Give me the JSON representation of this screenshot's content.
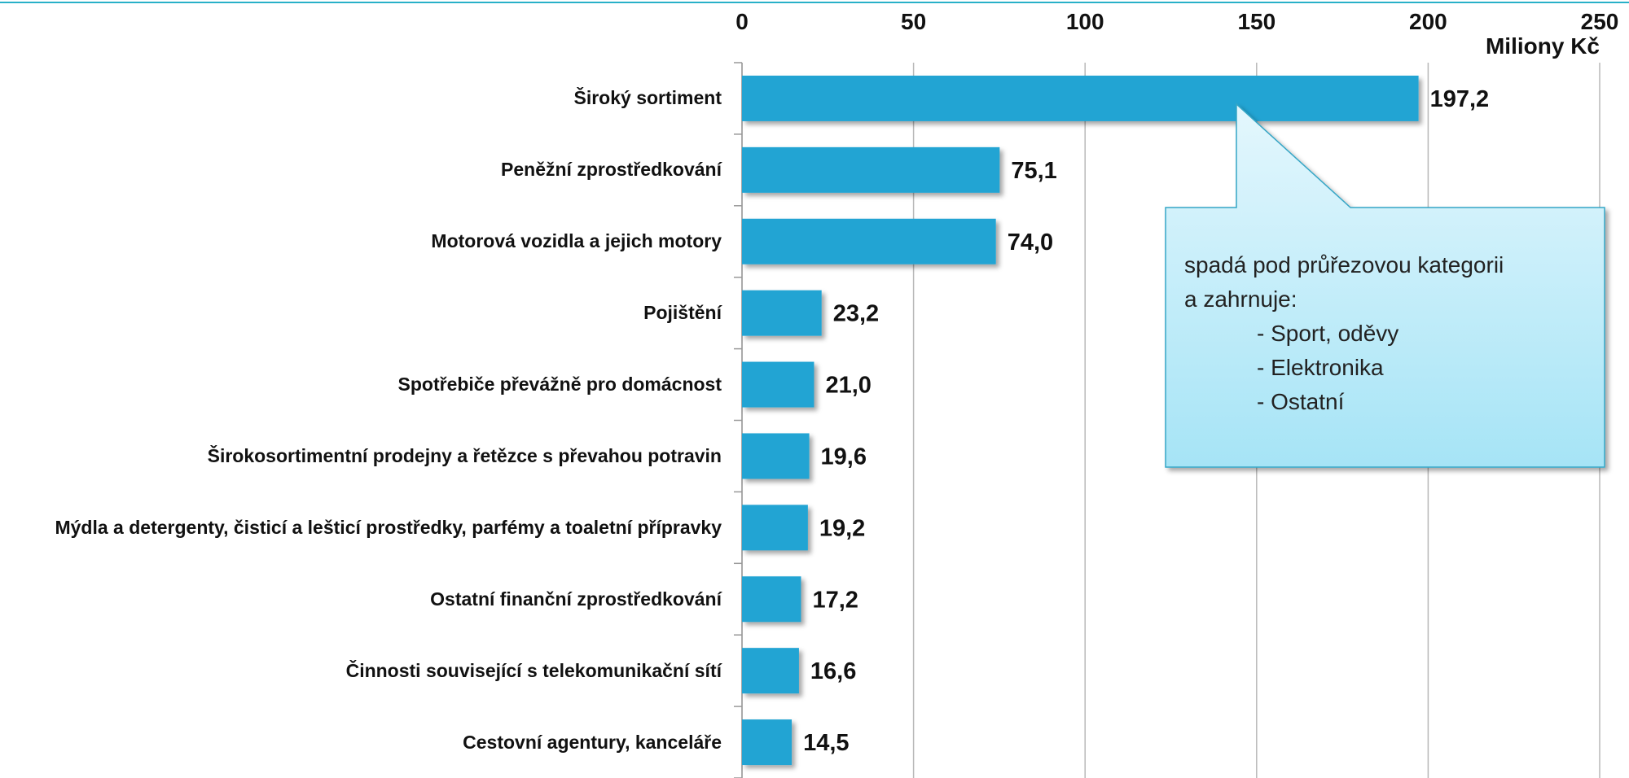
{
  "chart_data": {
    "type": "bar",
    "orientation": "horizontal",
    "x_axis_label": "Miliony Kč",
    "categories": [
      "Široký sortiment",
      "Peněžní zprostředkování",
      "Motorová vozidla a jejich motory",
      "Pojištění",
      "Spotřebiče převážně pro domácnost",
      "Širokosortimentní prodejny a řetězce s převahou potravin",
      "Mýdla a detergenty, čisticí a lešticí prostředky, parfémy a toaletní přípravky",
      "Ostatní finanční zprostředkování",
      "Činnosti související s telekomunikační sítí",
      "Cestovní agentury, kanceláře"
    ],
    "values": [
      197.2,
      75.1,
      74.0,
      23.2,
      21.0,
      19.6,
      19.2,
      17.2,
      16.6,
      14.5
    ],
    "value_labels": [
      "197,2",
      "75,1",
      "74,0",
      "23,2",
      "21,0",
      "19,6",
      "19,2",
      "17,2",
      "16,6",
      "14,5"
    ],
    "color": "#22a4d3",
    "xlim": [
      0,
      250
    ],
    "xticks": [
      0,
      50,
      100,
      150,
      200,
      250
    ],
    "grid": true,
    "annotation": {
      "lines": [
        "spadá pod průřezovou kategorii",
        "a zahrnuje:",
        "- Sport, oděvy",
        "- Elektronika",
        "- Ostatní"
      ]
    }
  }
}
